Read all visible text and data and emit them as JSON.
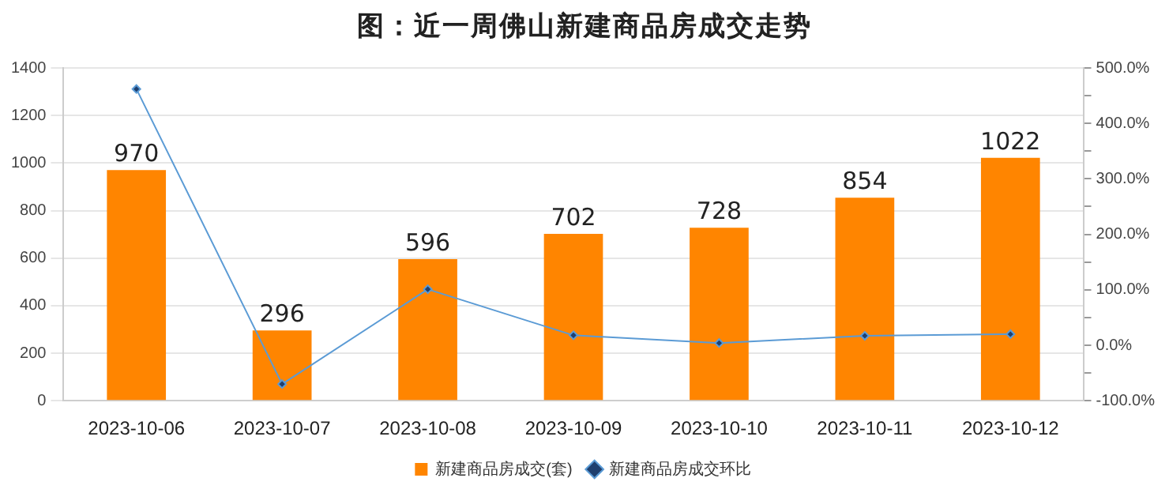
{
  "chart_data": {
    "type": "bar",
    "title": "图：近一周佛山新建商品房成交走势",
    "categories": [
      "2023-10-06",
      "2023-10-07",
      "2023-10-08",
      "2023-10-09",
      "2023-10-10",
      "2023-10-11",
      "2023-10-12"
    ],
    "series": [
      {
        "name": "新建商品房成交(套)",
        "color": "#ff8500",
        "values": [
          970,
          296,
          596,
          702,
          728,
          854,
          1022
        ],
        "value_labels": [
          "970",
          "296",
          "596",
          "702",
          "728",
          "854",
          "1022"
        ]
      },
      {
        "name": "新建商品房成交环比",
        "type": "line",
        "axis": "y2",
        "color": "#5b9bd5",
        "marker": "diamond",
        "values": [
          462,
          -70,
          101,
          18,
          4,
          17,
          20
        ]
      }
    ],
    "ylim": [
      0,
      1400
    ],
    "yticks": [
      0,
      200,
      400,
      600,
      800,
      1000,
      1200,
      1400
    ],
    "y2lim": [
      -100,
      500
    ],
    "y2ticks": [
      {
        "value": -100,
        "label": "-100.0%"
      },
      {
        "value": -50,
        "label": null
      },
      {
        "value": 0,
        "label": "0.0%"
      },
      {
        "value": 50,
        "label": null
      },
      {
        "value": 100,
        "label": "100.0%"
      },
      {
        "value": 150,
        "label": null
      },
      {
        "value": 200,
        "label": "200.0%"
      },
      {
        "value": 250,
        "label": null
      },
      {
        "value": 300,
        "label": "300.0%"
      },
      {
        "value": 350,
        "label": null
      },
      {
        "value": 400,
        "label": "400.0%"
      },
      {
        "value": 450,
        "label": null
      },
      {
        "value": 500,
        "label": "500.0%"
      }
    ],
    "grid": "y",
    "legend": "bottom"
  }
}
